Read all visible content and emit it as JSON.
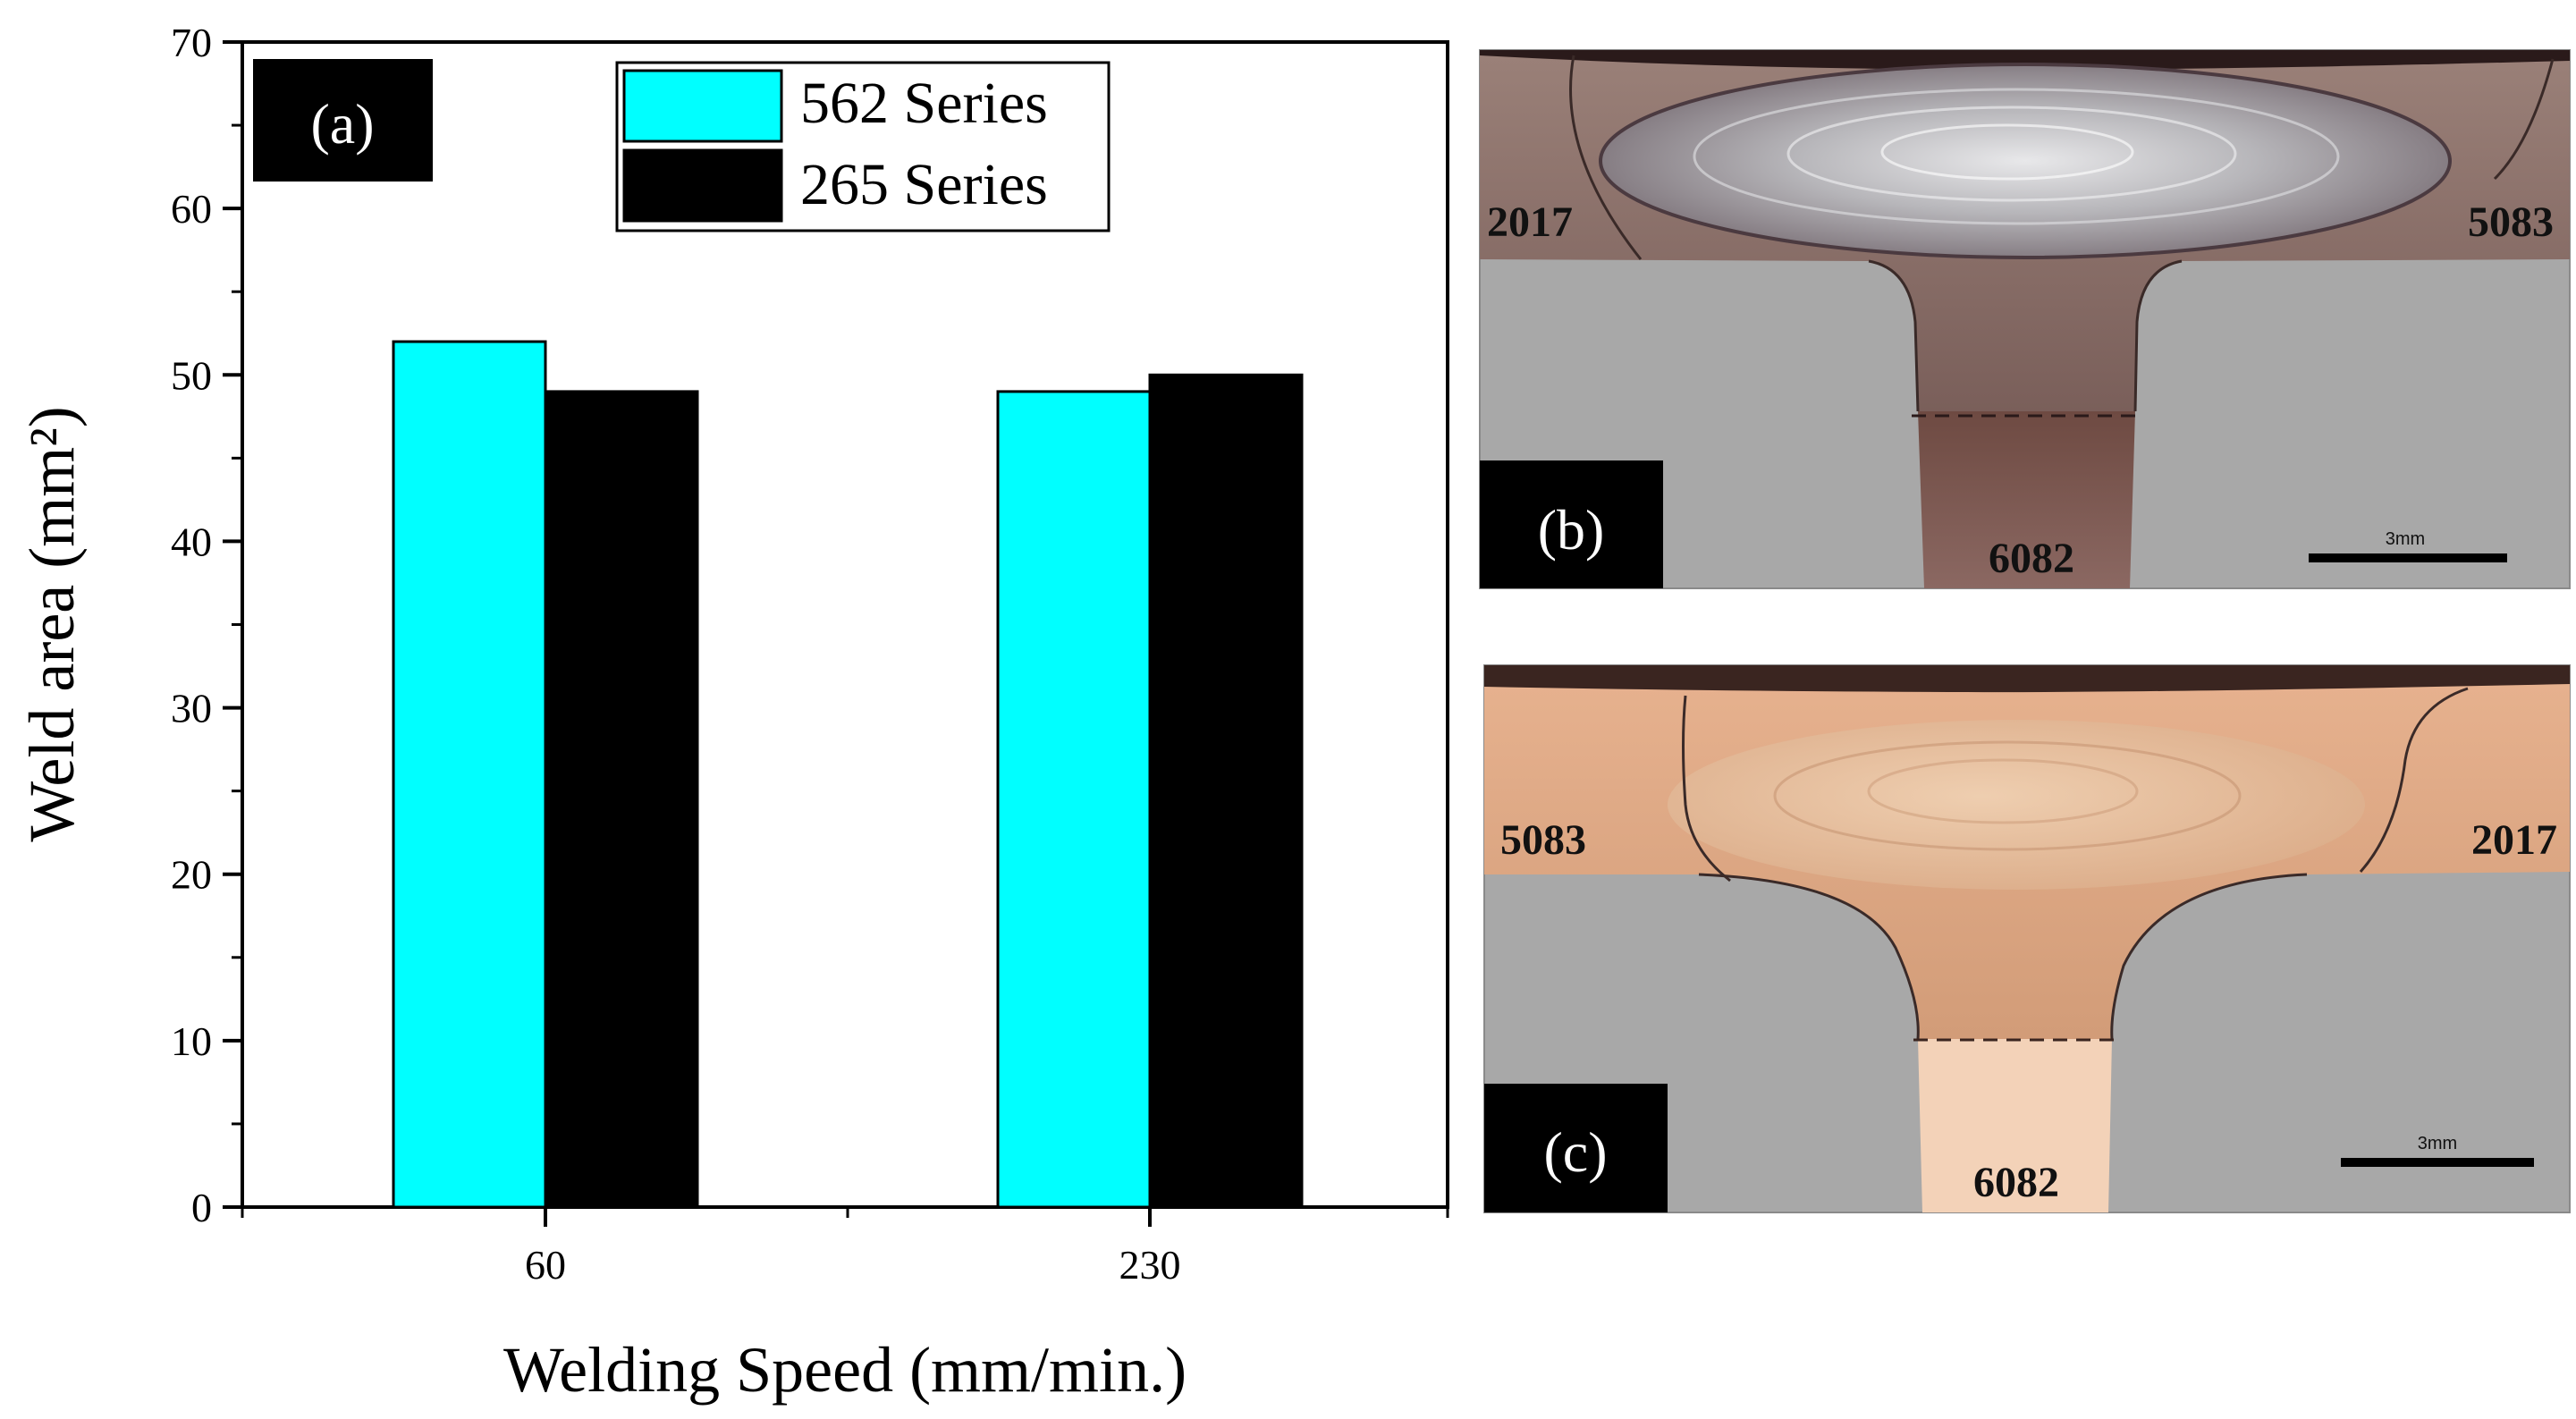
{
  "chart_data": {
    "type": "bar",
    "panel_label": "(a)",
    "categories": [
      "60",
      "230"
    ],
    "series": [
      {
        "name": "562 Series",
        "values": [
          52,
          49
        ]
      },
      {
        "name": "265 Series",
        "values": [
          49,
          50
        ]
      }
    ],
    "title": "",
    "xlabel": "Welding Speed (mm/min.)",
    "ylabel": "Weld area (mm²)",
    "ylim": [
      0,
      70
    ],
    "yticks": [
      0,
      10,
      20,
      30,
      40,
      50,
      60,
      70
    ],
    "grid": false,
    "legend_position": "top"
  },
  "colors": {
    "series_562": "#00ffff",
    "series_265": "#000000",
    "background": "#ffffff",
    "micro_gray": "#a8a8a8"
  },
  "micrographs": [
    {
      "panel_label": "(b)",
      "labels": {
        "top_left": "2017",
        "top_right": "5083",
        "bottom": "6082"
      },
      "scale_bar": "3mm"
    },
    {
      "panel_label": "(c)",
      "labels": {
        "top_left": "5083",
        "top_right": "2017",
        "bottom": "6082"
      },
      "scale_bar": "3mm"
    }
  ]
}
